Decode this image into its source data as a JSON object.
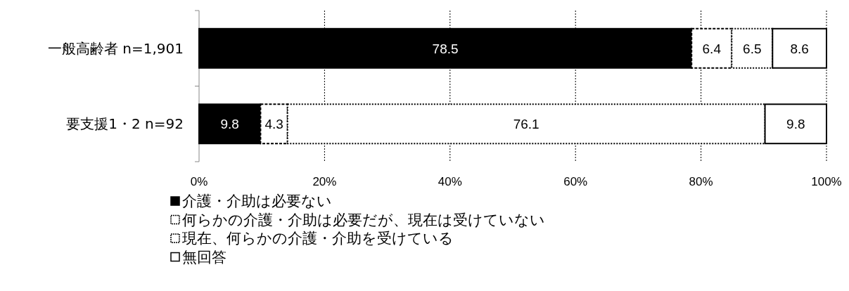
{
  "chart_data": {
    "type": "bar",
    "orientation": "horizontal",
    "stacked": true,
    "data_labels": true,
    "grid": "x",
    "legend": "bottom",
    "categories": [
      "一般高齢者 n=1,901",
      "要支援1・2 n=92"
    ],
    "xlim": [
      0,
      100
    ],
    "xticks": [
      {
        "value": 0,
        "label": "0%"
      },
      {
        "value": 20,
        "label": "20%"
      },
      {
        "value": 40,
        "label": "40%"
      },
      {
        "value": 60,
        "label": "60%"
      },
      {
        "value": 80,
        "label": "80%"
      },
      {
        "value": 100,
        "label": "100%"
      }
    ],
    "series": [
      {
        "name": "介護・介助は必要ない",
        "color": "#000000",
        "values": [
          78.5,
          9.8
        ]
      },
      {
        "name": "何らかの介護・介助は必要だが、現在は受けていない",
        "color": "#ffffff",
        "values": [
          6.4,
          4.3
        ]
      },
      {
        "name": "現在、何らかの介護・介助を受けている",
        "color": "#ffffff",
        "values": [
          6.5,
          76.1
        ]
      },
      {
        "name": "無回答",
        "color": "#ffffff",
        "values": [
          8.6,
          9.8
        ]
      }
    ]
  }
}
